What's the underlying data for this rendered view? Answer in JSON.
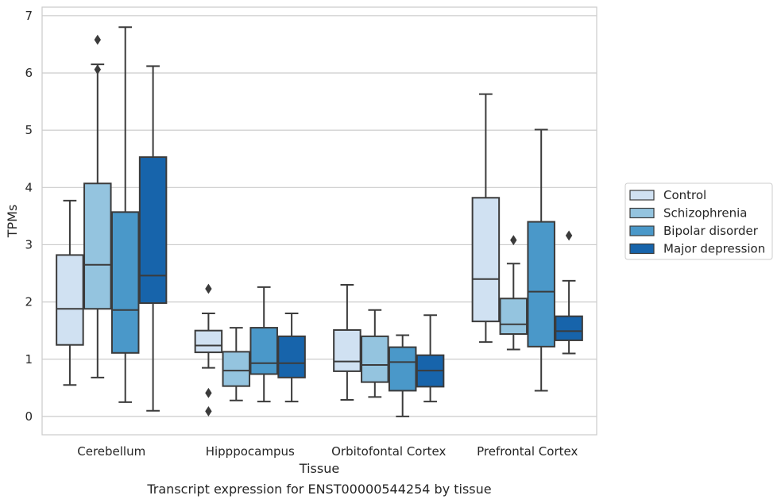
{
  "caption": "Transcript expression for ENST00000544254 by tissue",
  "chart_data": {
    "type": "box",
    "xlabel": "Tissue",
    "ylabel": "TPMs",
    "ylim": [
      -0.32,
      7.15
    ],
    "yticks": [
      0,
      1,
      2,
      3,
      4,
      5,
      6,
      7
    ],
    "grid": "horizontal",
    "legend_position": "right",
    "categories": [
      "Cerebellum",
      "Hipppocampus",
      "Orbitofontal Cortex",
      "Prefrontal Cortex"
    ],
    "series": [
      {
        "name": "Control",
        "color": "#d0e1f2",
        "boxes": [
          {
            "whislo": 0.55,
            "q1": 1.25,
            "med": 1.88,
            "q3": 2.82,
            "whishi": 3.77,
            "fliers": []
          },
          {
            "whislo": 0.85,
            "q1": 1.12,
            "med": 1.24,
            "q3": 1.5,
            "whishi": 1.8,
            "fliers": [
              2.23,
              0.41,
              0.09
            ]
          },
          {
            "whislo": 0.29,
            "q1": 0.79,
            "med": 0.96,
            "q3": 1.51,
            "whishi": 2.3,
            "fliers": []
          },
          {
            "whislo": 1.3,
            "q1": 1.66,
            "med": 2.4,
            "q3": 3.82,
            "whishi": 5.63,
            "fliers": []
          }
        ]
      },
      {
        "name": "Schizophrenia",
        "color": "#94c4df",
        "boxes": [
          {
            "whislo": 0.68,
            "q1": 1.88,
            "med": 2.65,
            "q3": 4.07,
            "whishi": 6.15,
            "fliers": [
              6.58,
              6.06
            ]
          },
          {
            "whislo": 0.28,
            "q1": 0.53,
            "med": 0.8,
            "q3": 1.13,
            "whishi": 1.55,
            "fliers": []
          },
          {
            "whislo": 0.34,
            "q1": 0.6,
            "med": 0.9,
            "q3": 1.4,
            "whishi": 1.86,
            "fliers": []
          },
          {
            "whislo": 1.17,
            "q1": 1.44,
            "med": 1.61,
            "q3": 2.06,
            "whishi": 2.67,
            "fliers": [
              3.08
            ]
          }
        ]
      },
      {
        "name": "Bipolar disorder",
        "color": "#4a98c9",
        "boxes": [
          {
            "whislo": 0.25,
            "q1": 1.11,
            "med": 1.86,
            "q3": 3.57,
            "whishi": 6.8,
            "fliers": []
          },
          {
            "whislo": 0.26,
            "q1": 0.74,
            "med": 0.93,
            "q3": 1.55,
            "whishi": 2.26,
            "fliers": []
          },
          {
            "whislo": 0.0,
            "q1": 0.45,
            "med": 0.95,
            "q3": 1.21,
            "whishi": 1.42,
            "fliers": []
          },
          {
            "whislo": 0.45,
            "q1": 1.22,
            "med": 2.18,
            "q3": 3.4,
            "whishi": 5.01,
            "fliers": []
          }
        ]
      },
      {
        "name": "Major depression",
        "color": "#1764ab",
        "boxes": [
          {
            "whislo": 0.1,
            "q1": 1.98,
            "med": 2.46,
            "q3": 4.53,
            "whishi": 6.12,
            "fliers": []
          },
          {
            "whislo": 0.26,
            "q1": 0.68,
            "med": 0.93,
            "q3": 1.4,
            "whishi": 1.8,
            "fliers": []
          },
          {
            "whislo": 0.26,
            "q1": 0.52,
            "med": 0.8,
            "q3": 1.07,
            "whishi": 1.77,
            "fliers": []
          },
          {
            "whislo": 1.1,
            "q1": 1.33,
            "med": 1.49,
            "q3": 1.75,
            "whishi": 2.37,
            "fliers": [
              3.16
            ]
          }
        ]
      }
    ]
  }
}
